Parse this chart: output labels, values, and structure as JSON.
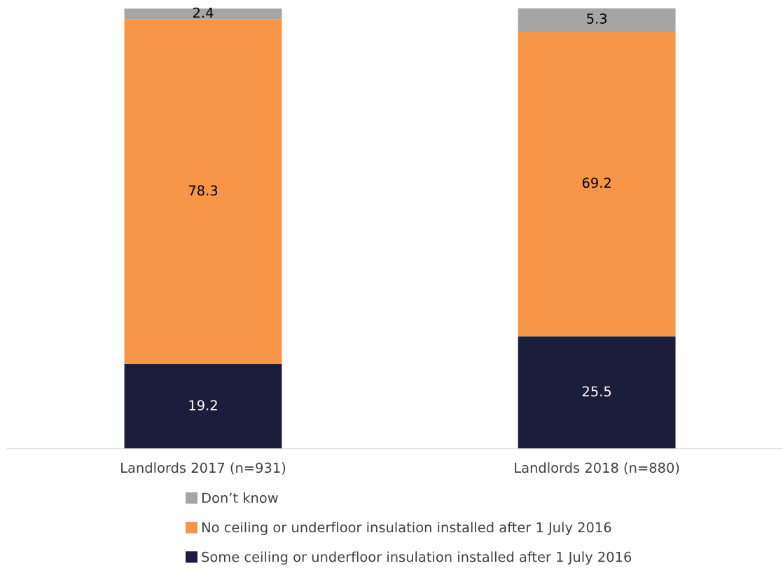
{
  "chart_data": {
    "type": "bar",
    "stacked": true,
    "categories": [
      "Landlords 2017 (n=931)",
      "Landlords 2018 (n=880)"
    ],
    "series": [
      {
        "name": "Some ceiling or underfloor insulation installed after 1 July 2016",
        "color": "#1c1c3c",
        "values": [
          19.2,
          25.5
        ]
      },
      {
        "name": "No ceiling or underfloor insulation installed after 1 July 2016",
        "color": "#f79646",
        "values": [
          78.3,
          69.2
        ]
      },
      {
        "name": "Don’t know",
        "color": "#a5a5a5",
        "values": [
          2.4,
          5.3
        ]
      }
    ],
    "data_labels": true,
    "legend": "bottom",
    "grid": false,
    "tick_labels": "x"
  }
}
